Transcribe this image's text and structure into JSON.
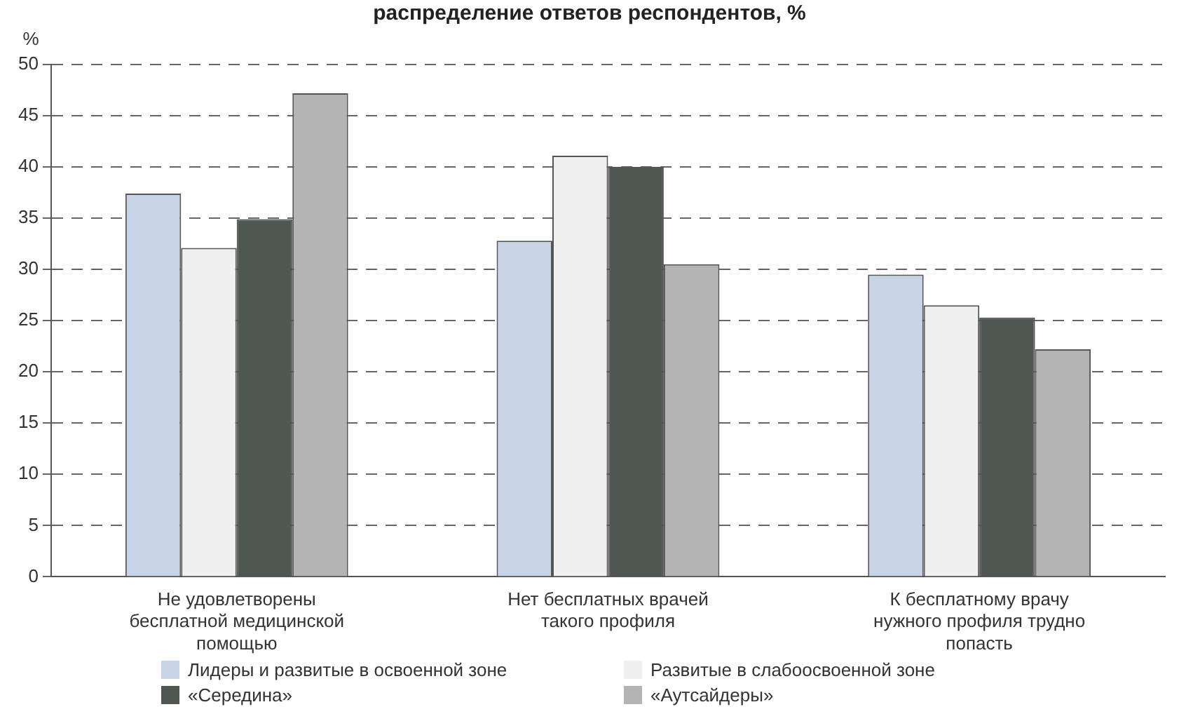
{
  "chart_data": {
    "type": "bar",
    "title": "распределение ответов респондентов, %",
    "ylabel": "%",
    "categories": [
      "Не удовлетворены бесплатной медицинской помощью",
      "Нет бесплатных врачей такого профиля",
      "К бесплатному врачу нужного профиля трудно попасть"
    ],
    "series": [
      {
        "name": "Лидеры и развитые в освоенной зоне",
        "color": "#c9d3e6",
        "values": [
          37.4,
          32.8,
          29.5
        ]
      },
      {
        "name": "Развитые в слабоосвоенной зоне",
        "color": "#f0f0f0",
        "values": [
          32.1,
          41.1,
          26.5
        ]
      },
      {
        "name": "«Середина»",
        "color": "#505652",
        "values": [
          34.9,
          40,
          25.3
        ]
      },
      {
        "name": "«Аутсайдеры»",
        "color": "#b4b4b4",
        "values": [
          47.2,
          30.5,
          22.2
        ]
      }
    ],
    "ylim": [
      0,
      50
    ],
    "yticks": [
      0,
      5,
      10,
      15,
      20,
      25,
      30,
      35,
      40,
      45,
      50
    ],
    "grid": "y",
    "legend": "bottom"
  }
}
